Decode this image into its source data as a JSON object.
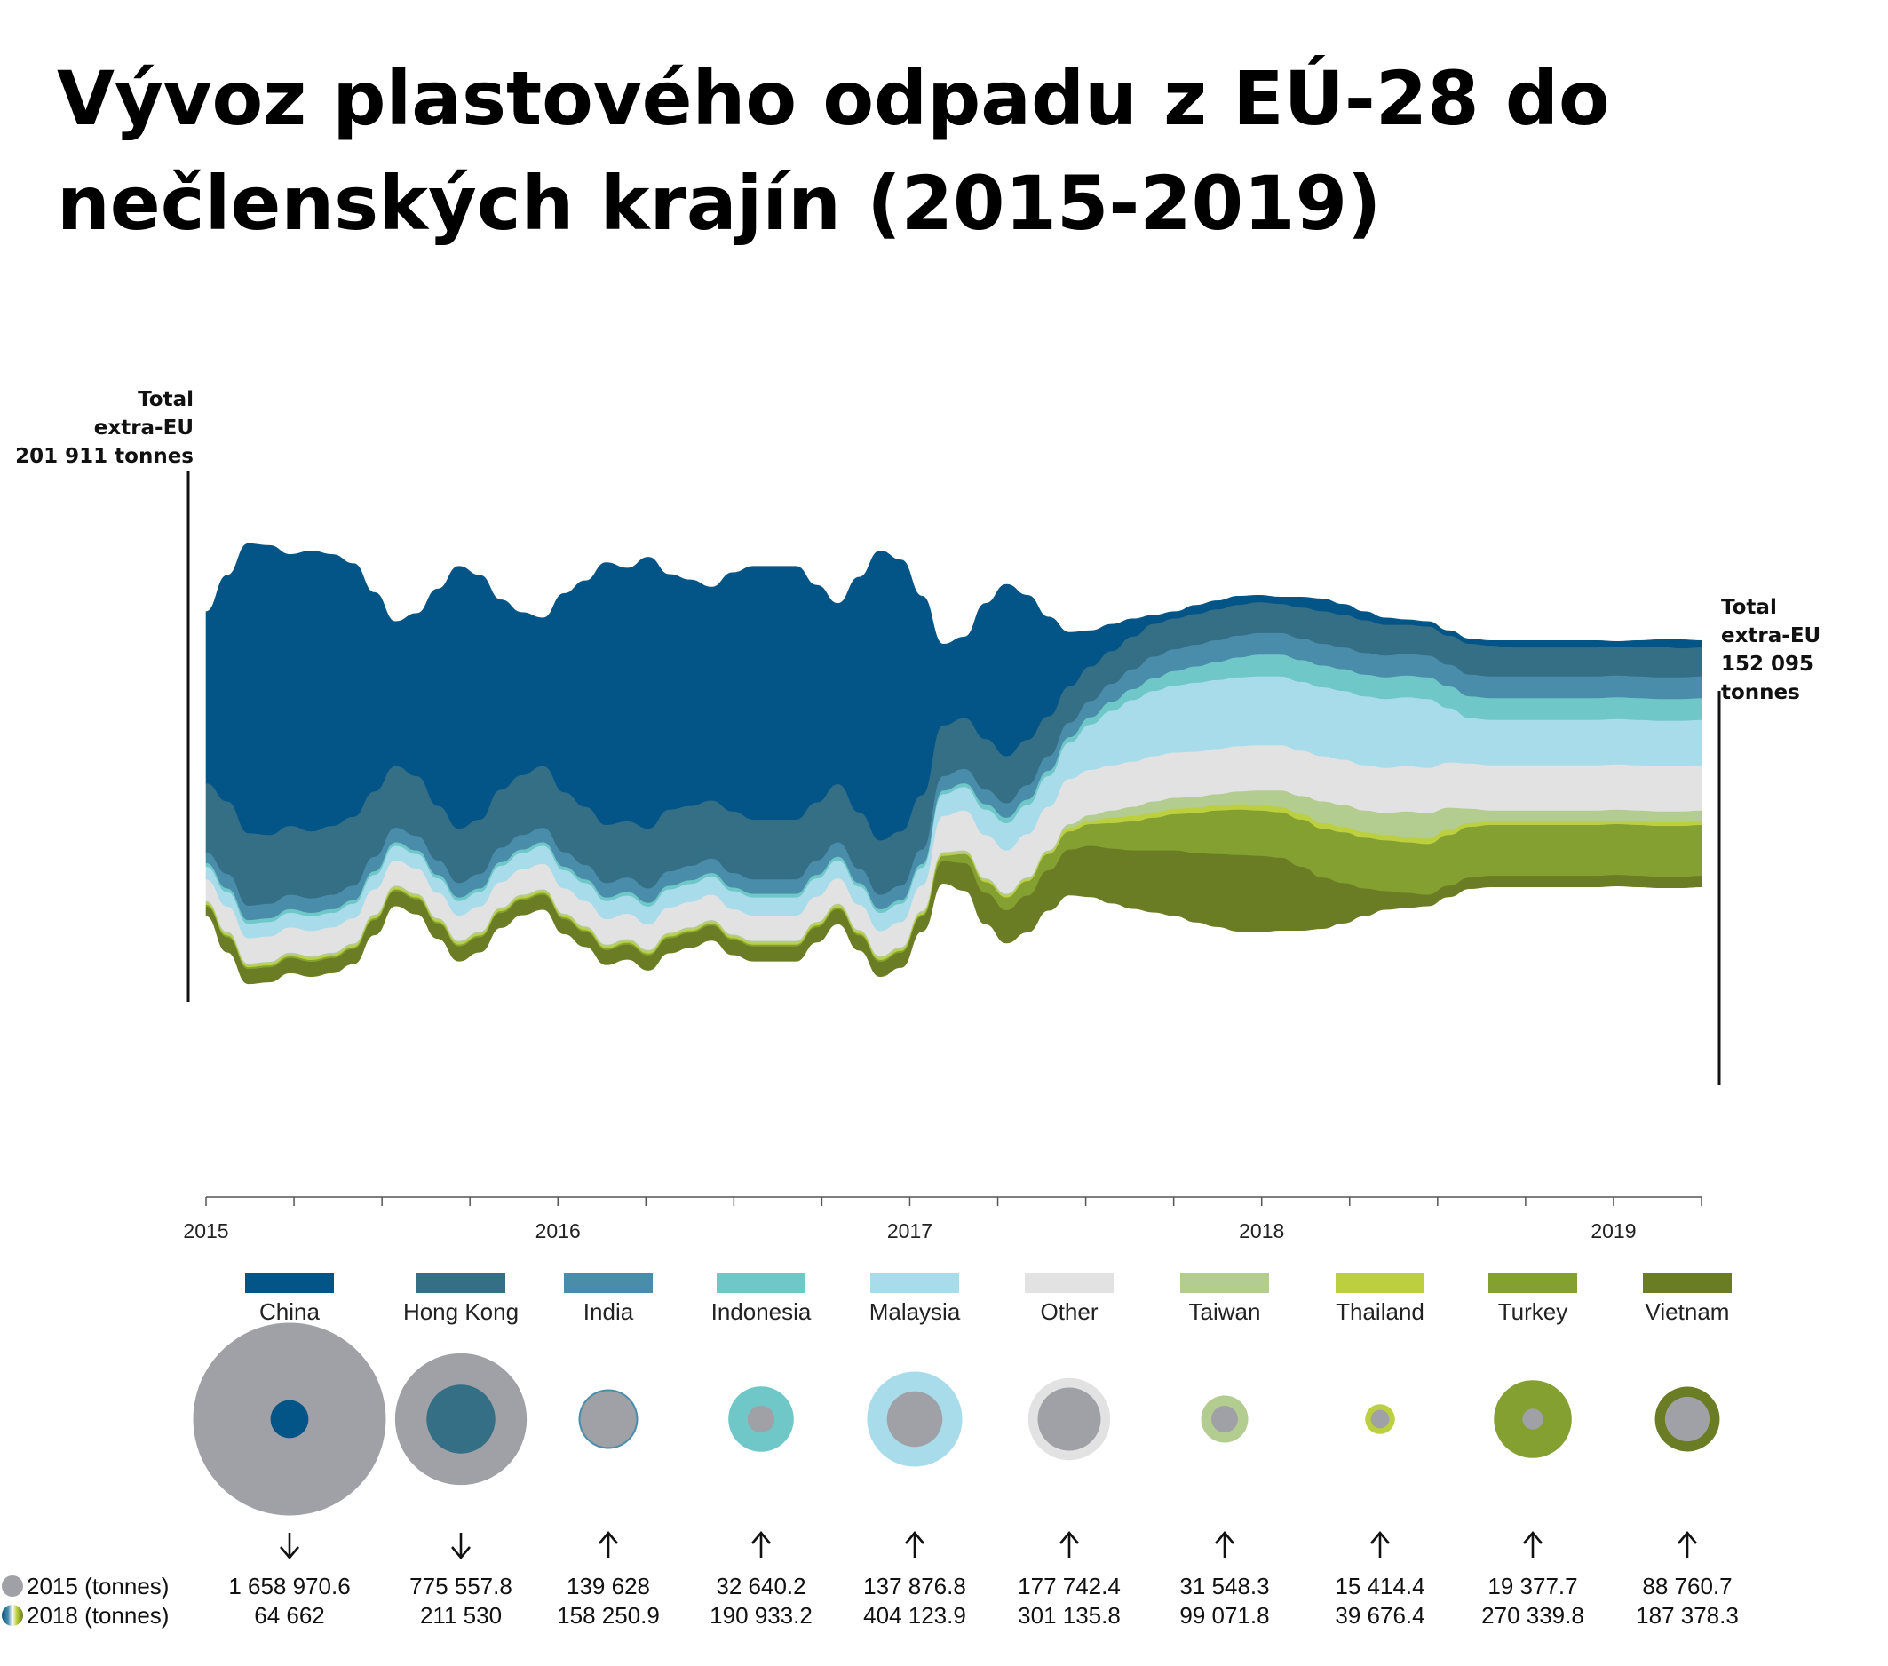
{
  "title_line1": "Vývoz plastového odpadu z EÚ-28 do",
  "title_line2": "nečlenských krajín (2015-2019)",
  "annotations": {
    "start": {
      "l1": "Total",
      "l2": "extra-EU",
      "l3": "201 911 tonnes"
    },
    "end": {
      "l1": "Total",
      "l2": "extra-EU",
      "l3": "152 095 tonnes"
    }
  },
  "legend_row_labels": {
    "y2015": "2015 (tonnes)",
    "y2018": "2018  (tonnes)"
  },
  "chart_data": {
    "type": "area",
    "subtype": "streamgraph",
    "x_start": "2015-01",
    "x_end": "2019-05",
    "x_tick_labels": [
      "2015",
      "2016",
      "2017",
      "2018",
      "2019"
    ],
    "total_start_tonnes": "201 911 tonnes",
    "total_end_tonnes": "152 095 tonnes",
    "countries": [
      {
        "name": "China",
        "color": "#045587",
        "v2015": "1 658 970.6",
        "v2018": "64 662",
        "trend": "down",
        "n2015": 1658970.6,
        "n2018": 64662,
        "monthly": [
          95,
          125,
          160,
          160,
          150,
          155,
          150,
          140,
          110,
          80,
          90,
          120,
          145,
          135,
          105,
          90,
          82,
          110,
          125,
          145,
          140,
          150,
          130,
          125,
          118,
          132,
          140,
          140,
          140,
          120,
          100,
          130,
          160,
          150,
          110,
          45,
          45,
          75,
          95,
          80,
          55,
          30,
          20,
          15,
          10,
          5,
          4,
          5,
          5,
          5,
          4,
          4,
          6,
          7,
          6,
          5,
          4,
          3,
          3,
          3,
          3,
          3,
          4,
          4,
          4,
          4,
          4,
          3,
          4,
          4,
          5,
          4
        ]
      },
      {
        "name": "Hong Kong",
        "color": "#346f86",
        "v2015": "775 557.8",
        "v2018": "211 530",
        "trend": "down",
        "n2015": 775557.8,
        "n2018": 211530,
        "monthly": [
          38,
          40,
          40,
          38,
          38,
          37,
          38,
          38,
          36,
          34,
          33,
          30,
          30,
          30,
          32,
          33,
          34,
          33,
          32,
          32,
          31,
          33,
          34,
          33,
          32,
          34,
          33,
          33,
          33,
          32,
          32,
          31,
          30,
          30,
          30,
          28,
          28,
          28,
          26,
          25,
          22,
          20,
          19,
          18,
          18,
          18,
          17,
          17,
          17,
          17,
          17,
          16,
          17,
          18,
          18,
          18,
          17,
          16,
          16,
          16,
          17,
          17,
          16,
          16,
          16,
          16,
          16,
          16,
          16,
          17,
          16,
          16
        ]
      },
      {
        "name": "India",
        "color": "#4a8dab",
        "v2015": "139 628",
        "v2018": "158 250.9",
        "trend": "up",
        "n2015": 139628,
        "n2018": 158250.9,
        "monthly": [
          6,
          8,
          8,
          8,
          8,
          8,
          8,
          8,
          8,
          8,
          8,
          8,
          8,
          8,
          8,
          8,
          8,
          8,
          8,
          8,
          8,
          8,
          8,
          8,
          8,
          8,
          8,
          8,
          8,
          8,
          8,
          8,
          8,
          8,
          8,
          8,
          8,
          8,
          8,
          8,
          8,
          8,
          9,
          10,
          11,
          12,
          12,
          12,
          12,
          12,
          12,
          12,
          12,
          12,
          12,
          12,
          12,
          12,
          12,
          12,
          12,
          12,
          12,
          12,
          12,
          12,
          12,
          12,
          12,
          12,
          12,
          12
        ]
      },
      {
        "name": "Indonesia",
        "color": "#6fc8c7",
        "v2015": "32 640.2",
        "v2018": "190 933.2",
        "trend": "up",
        "n2015": 32640.2,
        "n2018": 190933.2,
        "monthly": [
          2,
          2,
          2,
          2,
          2,
          2,
          2,
          2,
          2,
          2,
          2,
          2,
          2,
          2,
          2,
          2,
          2,
          2,
          2,
          2,
          2,
          2,
          2,
          2,
          2,
          2,
          2,
          2,
          2,
          2,
          2,
          2,
          2,
          2,
          2,
          2,
          2,
          3,
          3,
          3,
          3,
          3,
          4,
          5,
          6,
          7,
          8,
          9,
          10,
          11,
          12,
          12,
          12,
          12,
          12,
          12,
          12,
          12,
          12,
          12,
          12,
          12,
          12,
          12,
          12,
          12,
          12,
          12,
          12,
          12,
          12,
          12
        ]
      },
      {
        "name": "Malaysia",
        "color": "#a8dcea",
        "v2015": "137 876.8",
        "v2018": "404 123.9",
        "trend": "up",
        "n2015": 137876.8,
        "n2018": 404123.9,
        "monthly": [
          7,
          8,
          8,
          8,
          8,
          8,
          8,
          8,
          8,
          8,
          8,
          8,
          8,
          8,
          9,
          9,
          10,
          10,
          10,
          10,
          10,
          10,
          10,
          10,
          10,
          10,
          10,
          10,
          10,
          10,
          10,
          10,
          10,
          10,
          10,
          12,
          13,
          14,
          15,
          16,
          17,
          20,
          25,
          30,
          34,
          36,
          37,
          38,
          38,
          38,
          38,
          38,
          38,
          38,
          38,
          38,
          38,
          38,
          38,
          30,
          25,
          25,
          25,
          25,
          25,
          25,
          25,
          25,
          25,
          25,
          25,
          25
        ]
      },
      {
        "name": "Other",
        "color": "#e2e2e2",
        "v2015": "177 742.4",
        "v2018": "301 135.8",
        "trend": "up",
        "n2015": 177742.4,
        "n2018": 301135.8,
        "monthly": [
          12,
          14,
          14,
          14,
          14,
          14,
          14,
          14,
          14,
          14,
          14,
          14,
          14,
          14,
          14,
          14,
          14,
          14,
          14,
          14,
          14,
          14,
          14,
          14,
          14,
          14,
          14,
          14,
          14,
          14,
          14,
          14,
          14,
          14,
          14,
          20,
          22,
          24,
          24,
          24,
          24,
          25,
          25,
          25,
          25,
          25,
          25,
          25,
          25,
          25,
          25,
          25,
          25,
          25,
          25,
          25,
          25,
          25,
          25,
          25,
          25,
          25,
          25,
          25,
          25,
          25,
          25,
          25,
          25,
          25,
          25,
          25
        ]
      },
      {
        "name": "Taiwan",
        "color": "#b3cc8f",
        "v2015": "31 548.3",
        "v2018": "99 071.8",
        "trend": "up",
        "n2015": 31548.3,
        "n2018": 99071.8,
        "monthly": [
          1,
          1,
          1,
          1,
          1,
          1,
          1,
          1,
          1,
          1,
          1,
          1,
          1,
          1,
          1,
          1,
          1,
          1,
          1,
          1,
          1,
          1,
          1,
          1,
          1,
          1,
          1,
          1,
          1,
          1,
          1,
          1,
          1,
          1,
          1,
          1,
          1,
          1,
          1,
          1,
          1,
          2,
          3,
          4,
          5,
          6,
          6,
          6,
          6,
          7,
          8,
          9,
          10,
          12,
          12,
          12,
          12,
          14,
          14,
          12,
          8,
          6,
          6,
          6,
          6,
          6,
          6,
          6,
          6,
          6,
          6,
          6
        ]
      },
      {
        "name": "Thailand",
        "color": "#bccf3e",
        "v2015": "15 414.4",
        "v2018": "39 676.4",
        "trend": "up",
        "n2015": 15414.4,
        "n2018": 39676.4,
        "monthly": [
          1,
          1,
          1,
          1,
          1,
          1,
          1,
          1,
          1,
          1,
          1,
          1,
          1,
          1,
          1,
          1,
          1,
          1,
          1,
          1,
          1,
          1,
          1,
          1,
          1,
          1,
          1,
          1,
          1,
          1,
          1,
          1,
          1,
          1,
          1,
          1,
          1,
          1,
          1,
          1,
          1,
          2,
          2,
          3,
          3,
          3,
          3,
          3,
          3,
          3,
          3,
          3,
          3,
          3,
          3,
          3,
          3,
          3,
          3,
          3,
          2,
          2,
          2,
          2,
          2,
          2,
          2,
          2,
          2,
          2,
          2,
          2
        ]
      },
      {
        "name": "Turkey",
        "color": "#84a030",
        "v2015": "19 377.7",
        "v2018": "270 339.8",
        "trend": "up",
        "n2015": 19377.7,
        "n2018": 270339.8,
        "monthly": [
          1,
          1,
          1,
          1,
          1,
          1,
          1,
          1,
          1,
          1,
          1,
          1,
          1,
          1,
          1,
          1,
          1,
          1,
          1,
          1,
          1,
          1,
          1,
          1,
          1,
          1,
          1,
          1,
          1,
          1,
          1,
          1,
          1,
          1,
          1,
          3,
          5,
          6,
          7,
          8,
          9,
          10,
          12,
          14,
          16,
          18,
          20,
          22,
          24,
          25,
          25,
          25,
          26,
          27,
          28,
          28,
          28,
          28,
          28,
          28,
          28,
          28,
          28,
          28,
          28,
          28,
          28,
          28,
          28,
          28,
          28,
          28
        ]
      },
      {
        "name": "Vietnam",
        "color": "#6a7c24",
        "v2015": "88 760.7",
        "v2018": "187 378.3",
        "trend": "up",
        "n2015": 88760.7,
        "n2018": 187378.3,
        "monthly": [
          5,
          8,
          8,
          8,
          8,
          8,
          8,
          8,
          8,
          8,
          8,
          8,
          8,
          8,
          8,
          8,
          8,
          8,
          8,
          8,
          8,
          8,
          8,
          8,
          8,
          8,
          8,
          8,
          8,
          8,
          8,
          8,
          8,
          8,
          8,
          12,
          15,
          17,
          18,
          20,
          22,
          25,
          28,
          30,
          32,
          34,
          36,
          38,
          40,
          42,
          42,
          40,
          35,
          28,
          22,
          15,
          10,
          8,
          6,
          6,
          6,
          6,
          6,
          6,
          6,
          6,
          6,
          6,
          6,
          6,
          6,
          6
        ]
      }
    ]
  }
}
